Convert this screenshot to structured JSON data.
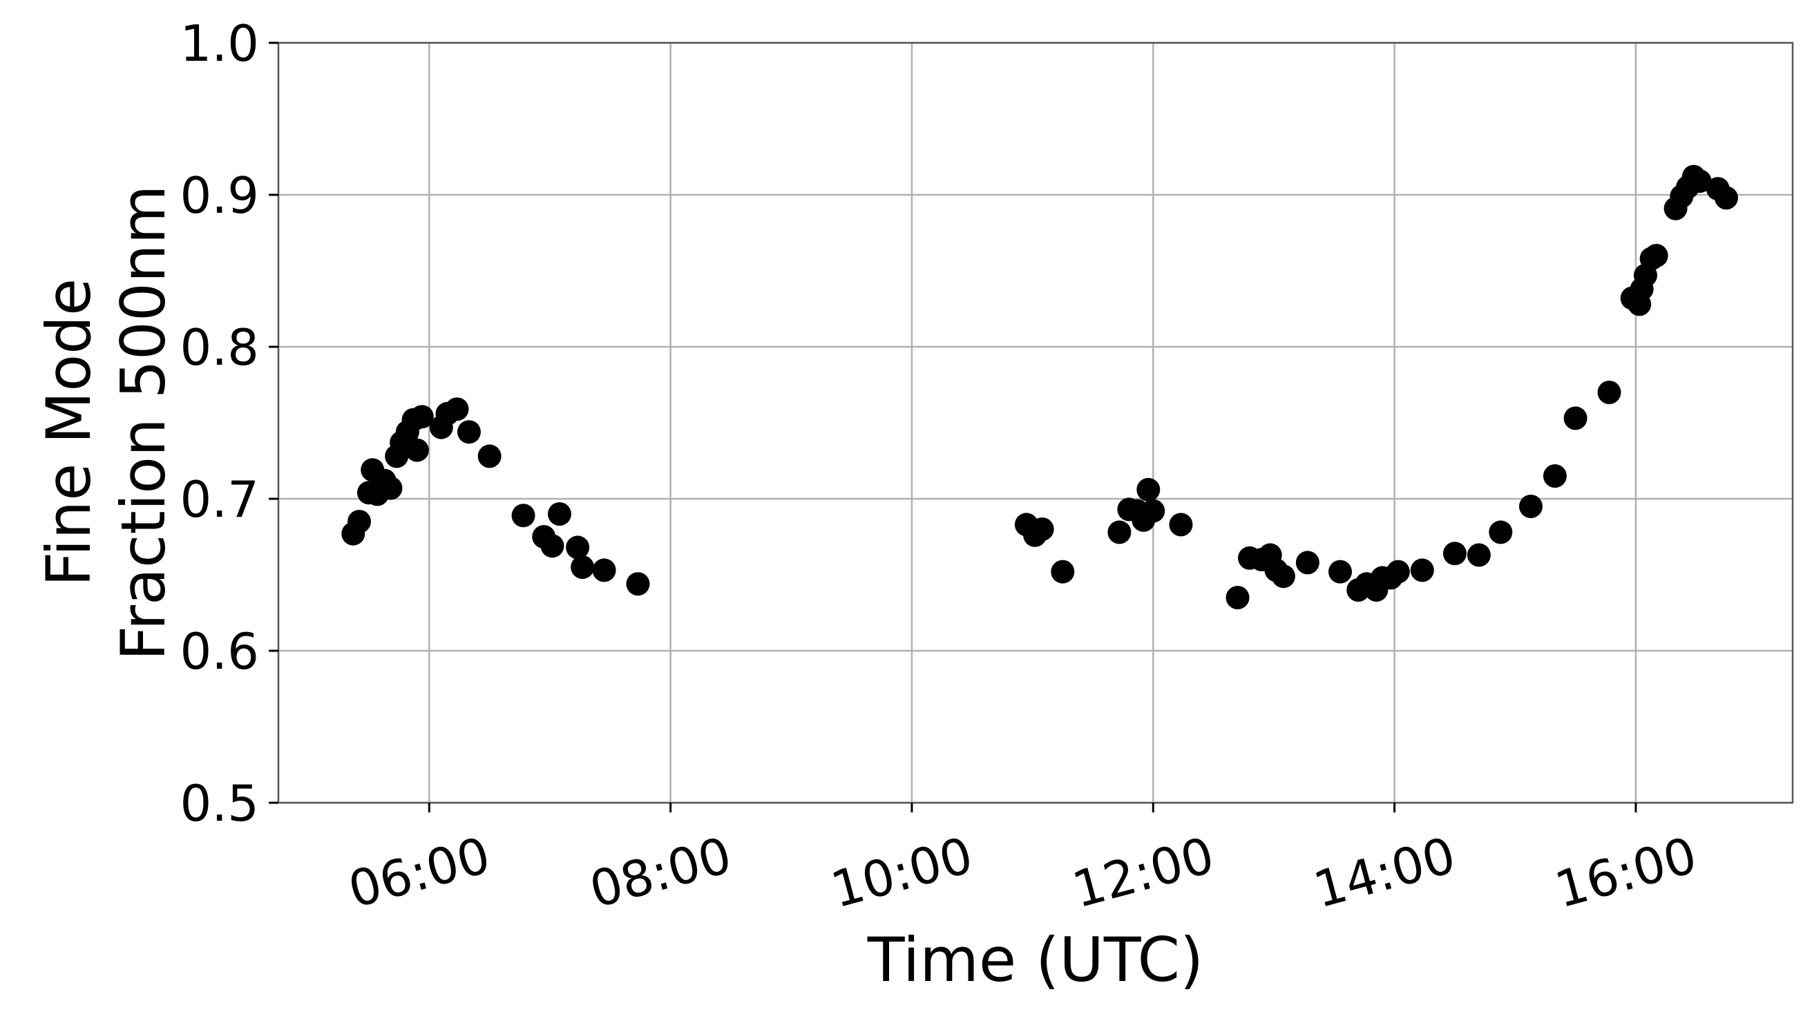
{
  "chart_data": {
    "type": "scatter",
    "xlabel": "Time (UTC)",
    "ylabel_lines": [
      "Fine Mode",
      "Fraction 500nm"
    ],
    "x_unit": "hours",
    "xlim": [
      4.75,
      17.3
    ],
    "ylim": [
      0.5,
      1.0
    ],
    "xticks": [
      6,
      8,
      10,
      12,
      14,
      16
    ],
    "xtick_labels": [
      "06:00",
      "08:00",
      "10:00",
      "12:00",
      "14:00",
      "16:00"
    ],
    "yticks": [
      0.5,
      0.6,
      0.7,
      0.8,
      0.9,
      1.0
    ],
    "ytick_labels": [
      "0.5",
      "0.6",
      "0.7",
      "0.8",
      "0.9",
      "1.0"
    ],
    "grid": true,
    "marker_color": "#000000",
    "series": [
      {
        "points": [
          [
            5.37,
            0.677
          ],
          [
            5.42,
            0.685
          ],
          [
            5.5,
            0.704
          ],
          [
            5.53,
            0.719
          ],
          [
            5.57,
            0.703
          ],
          [
            5.63,
            0.712
          ],
          [
            5.68,
            0.707
          ],
          [
            5.73,
            0.728
          ],
          [
            5.77,
            0.737
          ],
          [
            5.82,
            0.744
          ],
          [
            5.87,
            0.752
          ],
          [
            5.9,
            0.732
          ],
          [
            5.94,
            0.754
          ],
          [
            6.1,
            0.747
          ],
          [
            6.15,
            0.756
          ],
          [
            6.23,
            0.759
          ],
          [
            6.33,
            0.744
          ],
          [
            6.5,
            0.728
          ],
          [
            6.78,
            0.689
          ],
          [
            6.95,
            0.675
          ],
          [
            7.02,
            0.669
          ],
          [
            7.08,
            0.69
          ],
          [
            7.23,
            0.668
          ],
          [
            7.27,
            0.655
          ],
          [
            7.45,
            0.653
          ],
          [
            7.73,
            0.644
          ],
          [
            10.95,
            0.683
          ],
          [
            11.02,
            0.676
          ],
          [
            11.08,
            0.68
          ],
          [
            11.25,
            0.652
          ],
          [
            11.72,
            0.678
          ],
          [
            11.8,
            0.693
          ],
          [
            11.87,
            0.692
          ],
          [
            11.92,
            0.686
          ],
          [
            11.96,
            0.706
          ],
          [
            12.0,
            0.692
          ],
          [
            12.23,
            0.683
          ],
          [
            12.7,
            0.635
          ],
          [
            12.8,
            0.661
          ],
          [
            12.9,
            0.66
          ],
          [
            12.97,
            0.663
          ],
          [
            13.02,
            0.653
          ],
          [
            13.08,
            0.649
          ],
          [
            13.28,
            0.658
          ],
          [
            13.55,
            0.652
          ],
          [
            13.7,
            0.64
          ],
          [
            13.77,
            0.644
          ],
          [
            13.85,
            0.64
          ],
          [
            13.9,
            0.648
          ],
          [
            13.97,
            0.648
          ],
          [
            14.03,
            0.652
          ],
          [
            14.23,
            0.653
          ],
          [
            14.5,
            0.664
          ],
          [
            14.7,
            0.663
          ],
          [
            14.88,
            0.678
          ],
          [
            15.13,
            0.695
          ],
          [
            15.33,
            0.715
          ],
          [
            15.5,
            0.753
          ],
          [
            15.78,
            0.77
          ],
          [
            15.97,
            0.832
          ],
          [
            16.03,
            0.828
          ],
          [
            16.05,
            0.838
          ],
          [
            16.08,
            0.847
          ],
          [
            16.13,
            0.858
          ],
          [
            16.17,
            0.86
          ],
          [
            16.33,
            0.891
          ],
          [
            16.38,
            0.899
          ],
          [
            16.43,
            0.905
          ],
          [
            16.48,
            0.912
          ],
          [
            16.53,
            0.909
          ],
          [
            16.68,
            0.904
          ],
          [
            16.75,
            0.898
          ]
        ]
      }
    ]
  }
}
